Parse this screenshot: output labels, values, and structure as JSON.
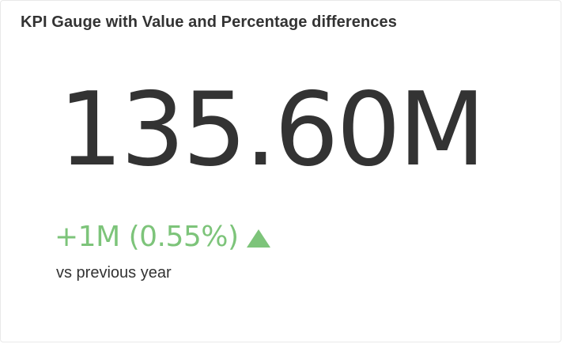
{
  "widget": {
    "title": "KPI Gauge with Value and Percentage differences",
    "value": "135.60M",
    "difference": "+1M (0.55%)",
    "trend_icon": "triangle-up-icon",
    "comparison_label": "vs previous year"
  },
  "colors": {
    "positive": "#7dc47a",
    "text": "#333333",
    "border": "#e9e9e9"
  }
}
